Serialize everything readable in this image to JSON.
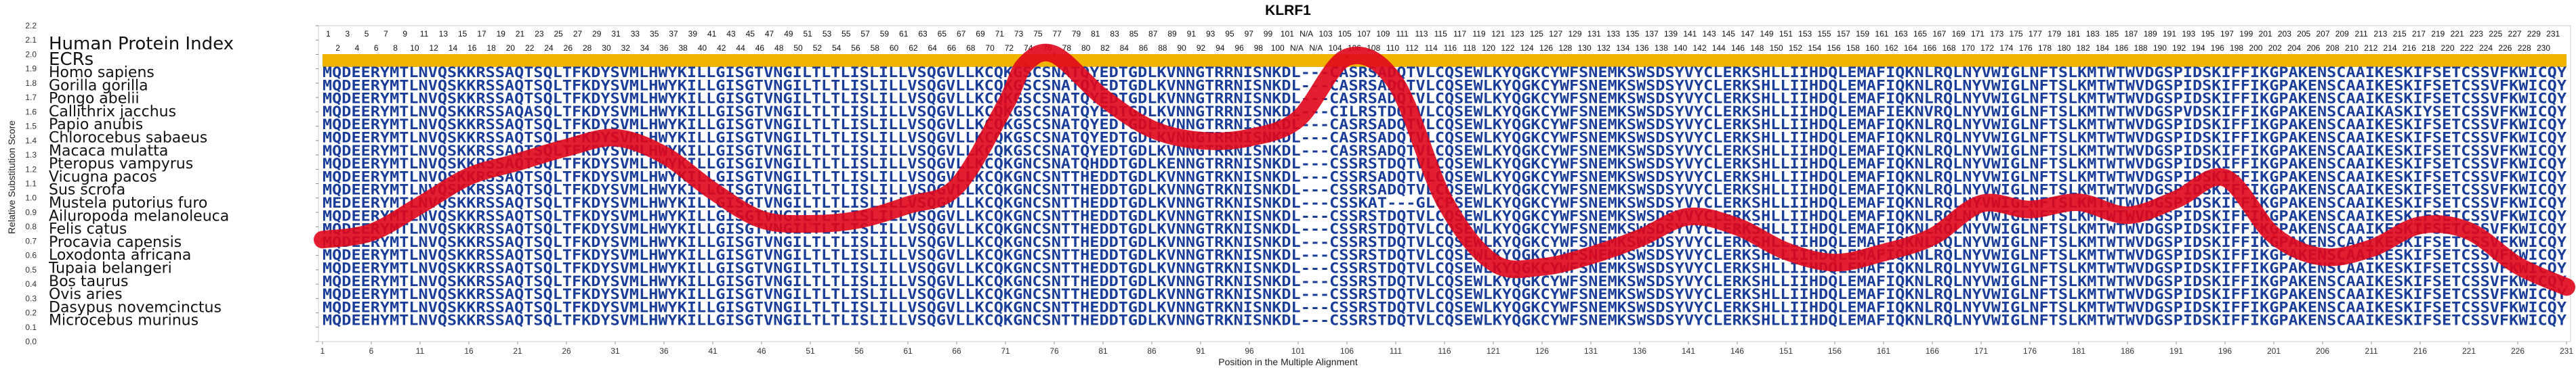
{
  "chart_data": {
    "type": "line",
    "title": "KLRF1",
    "xlabel": "Position in the Multiple Alignment",
    "ylabel": "Relative Substitution Score",
    "ylim": [
      0.0,
      2.2
    ],
    "y_ticks": [
      "0.0",
      "0.1",
      "0.2",
      "0.3",
      "0.4",
      "0.5",
      "0.6",
      "0.7",
      "0.8",
      "0.9",
      "1.0",
      "1.1",
      "1.2",
      "1.3",
      "1.4",
      "1.5",
      "1.6",
      "1.7",
      "1.8",
      "1.9",
      "2.0",
      "2.1",
      "2.2"
    ],
    "x_ticks": [
      "1",
      "6",
      "11",
      "16",
      "21",
      "26",
      "31",
      "36",
      "41",
      "46",
      "51",
      "56",
      "61",
      "66",
      "71",
      "76",
      "81",
      "86",
      "91",
      "96",
      "101",
      "106",
      "111",
      "116",
      "121",
      "126",
      "131",
      "136",
      "141",
      "146",
      "151",
      "156",
      "161",
      "166",
      "171",
      "176",
      "181",
      "186",
      "191",
      "196",
      "201",
      "206",
      "211",
      "216",
      "221",
      "226",
      "231"
    ],
    "series": [
      {
        "color": "#e0061a",
        "x": [
          1,
          6,
          11,
          16,
          21,
          26,
          31,
          36,
          41,
          46,
          51,
          56,
          61,
          66,
          71,
          73,
          76,
          81,
          86,
          91,
          96,
          101,
          106,
          111,
          116,
          121,
          126,
          131,
          136,
          141,
          146,
          151,
          156,
          161,
          166,
          171,
          176,
          181,
          186,
          191,
          196,
          201,
          206,
          211,
          216,
          221,
          226,
          231
        ],
        "y": [
          0.71,
          0.76,
          0.95,
          1.15,
          1.25,
          1.35,
          1.42,
          1.3,
          1.05,
          0.85,
          0.82,
          0.85,
          0.95,
          1.08,
          1.65,
          1.93,
          2.0,
          1.7,
          1.48,
          1.4,
          1.42,
          1.55,
          1.98,
          1.8,
          0.98,
          0.55,
          0.52,
          0.6,
          0.72,
          0.87,
          0.8,
          0.63,
          0.55,
          0.62,
          0.73,
          0.96,
          0.92,
          0.97,
          0.88,
          0.99,
          1.14,
          0.74,
          0.59,
          0.65,
          0.81,
          0.77,
          0.53,
          0.38
        ]
      }
    ]
  },
  "alignment": {
    "panel_title": "Human Protein Index",
    "ecr_label": "ECRs",
    "ecr_color": "#f0b400",
    "seq_color": "#1a3d99",
    "index_row_1": [
      "1",
      "3",
      "5",
      "7",
      "9",
      "11",
      "13",
      "15",
      "17",
      "19",
      "21",
      "23",
      "25",
      "27",
      "29",
      "31",
      "33",
      "35",
      "37",
      "39",
      "41",
      "43",
      "45",
      "47",
      "49",
      "51",
      "53",
      "55",
      "57",
      "59",
      "61",
      "63",
      "65",
      "67",
      "69",
      "71",
      "73",
      "75",
      "77",
      "79",
      "81",
      "83",
      "85",
      "87",
      "89",
      "91",
      "93",
      "95",
      "97",
      "99",
      "101",
      "N/A",
      "103",
      "105",
      "107",
      "109",
      "111",
      "113",
      "115",
      "117",
      "119",
      "121",
      "123",
      "125",
      "127",
      "129",
      "131",
      "133",
      "135",
      "137",
      "139",
      "141",
      "143",
      "145",
      "147",
      "149",
      "151",
      "153",
      "155",
      "157",
      "159",
      "161",
      "163",
      "165",
      "167",
      "169",
      "171",
      "173",
      "175",
      "177",
      "179",
      "181",
      "183",
      "185",
      "187",
      "189",
      "191",
      "193",
      "195",
      "197",
      "199",
      "201",
      "203",
      "205",
      "207",
      "209",
      "211",
      "213",
      "215",
      "217",
      "219",
      "221",
      "223",
      "225",
      "227",
      "229",
      "231"
    ],
    "index_row_2": [
      "2",
      "4",
      "6",
      "8",
      "10",
      "12",
      "14",
      "16",
      "18",
      "20",
      "22",
      "24",
      "26",
      "28",
      "30",
      "32",
      "34",
      "36",
      "38",
      "40",
      "42",
      "44",
      "46",
      "48",
      "50",
      "52",
      "54",
      "56",
      "58",
      "60",
      "62",
      "64",
      "66",
      "68",
      "70",
      "72",
      "74",
      "76",
      "78",
      "80",
      "82",
      "84",
      "86",
      "88",
      "90",
      "92",
      "94",
      "96",
      "98",
      "100",
      "N/A",
      "N/A",
      "104",
      "106",
      "108",
      "110",
      "112",
      "114",
      "116",
      "118",
      "120",
      "122",
      "124",
      "126",
      "128",
      "130",
      "132",
      "134",
      "136",
      "138",
      "140",
      "142",
      "144",
      "146",
      "148",
      "150",
      "152",
      "154",
      "156",
      "158",
      "160",
      "162",
      "164",
      "166",
      "168",
      "170",
      "172",
      "174",
      "176",
      "178",
      "180",
      "182",
      "184",
      "186",
      "188",
      "190",
      "192",
      "194",
      "196",
      "198",
      "200",
      "202",
      "204",
      "206",
      "208",
      "210",
      "212",
      "214",
      "216",
      "218",
      "220",
      "222",
      "224",
      "226",
      "228",
      "230"
    ],
    "rows": [
      {
        "species": "Homo sapiens",
        "seq": "MQDEERYMTLNVQSKKRSSAQTSQLTFKDYSVMLHWYKILLGISGTVNGILTLTLISLILLVSQGVLLKCQKGSCSNATQYEDTGDLKVNNGTRRNISNKDL---CASRSADQTVLCQSEWLKYQGKCYWFSNEMKSWSDSYVYCLERKSHLLIIHDQLEMAFIQKNLRQLNYVWIGLNFTSLKMTWTWVDGSPIDSKIFFIKGPAKENSCAAIKESKIFSETCSSVFKWICQY"
      },
      {
        "species": "Gorilla gorilla",
        "seq": "MQDEERYMTLNVQSKKRSSAQTSQLTFKDYSVMLHWYKILLGISGTVNGILTLTLISLILLVSQGVLLKCQKGSCSNATQYEDTGDLKVNNGTRRNISNKDL---CASRSADQTVLCQSEWLKYQGKCYWFSNEMKSWSDSYVYCLERKSHLLIIHDQLEMAFIQKNLRQLNYVWIGLNFTSLKMTWTWVDGSPIDSKIFFIKGPAKENSCAAIKESKIFSETCSSVFKWICQY"
      },
      {
        "species": "Pongo abelii",
        "seq": "MQDEERYMTLNVQSKKRSSAQTSQLTFKDYSVMLHWYKILLGISGTVNGILTLTLISLILLVSQGVLLKCQKGSCSNATQYEDTGDLKVNNGTRRNISNKDL---CASRSADQTVLCQSEWLKYQGKCYWFSNEMKSWSDSYVYCLERKSHLLIIHDQLEMAFIQKNLRQLNYVWIGLNFTSLKMTWTWVDGSPIDSKIFFIKGPAKENSCAAIKESKIFSETCSSVFKWICQY"
      },
      {
        "species": "Callithrix jacchus",
        "seq": "MQDEERYMTLNVQSKKRSSAQASQLTFKDYSVMLHWYKILLGISGTVNGILTLTLISLILLVSQGVLLKCQKGSCSNATQYEDTGDLKVNNGTRRNISNKDL---CILRSTDQTVLCQSEWLKYQGKCYWFSNEMKSWSDSYVYCLERKSHLLIIHDQLEMAFIEKNVRQLNYVWIGLNFTSLKMTWTWVDGSPVDSKIFFIKGPAKENSCAAIKASKIYSETCSSVFKWICQY"
      },
      {
        "species": "Papio anubis",
        "seq": "MQDEERYMTLNVQSKKRSSAQTSQLTFKDYSVMLHWYKILLGISGTVNGILTLTLISLILLVSQGVLLKCQKGSCSNATQYEDTGDLKVNNGTRRNISNKDL---CASRSADQTVLCQSEWLKYQGKCYWFSNEMKSWSDSYVYCLERKSHLLIIHDQLEMAFIQKNLRQLNYVWIGLNFTSLKMTWTWVDGSPIDSKIFFIKGPAKENSCAAIKESKIFSETCSSVFKWICQY"
      },
      {
        "species": "Chlorocebus sabaeus",
        "seq": "MQDEERYMTLNVQSKKRSSAQTSQLTFKDYSVMLHWYKILLGISGTVNGILTLTLISLILLVSQGVLLKCQKGSCSNATQYEDTGDLKVNNGTRRNISNKDL---CASRSADQTVLCQSEWLKYQGKCYWFSNEMKSWSDSYVYCLERKSHLLIIHDQLEMAFIQKNLRQLNYVWIGLNFTSLKMTWTWVDGSPIDSKIFFIKGPAKENSCAAIKESKIFSETCSSVFKWICQY"
      },
      {
        "species": "Macaca mulatta",
        "seq": "MQDEERYMTLNVQSKKRSSAQTSQLTFKDYSVMLHWYKILLGISGTVNGILTLTLISLILLVSQGVLLKCQKGSCSNATQYEDTGDLKVNNGTRRNISNKDL---CASRSADQTVLCQSEWLKYQGKCYWFSNEMKSWSDSYVYCLERKSHLLIIHDQLEMAFIQKNLRQLNYVWIGLNFTSLKMTWTWVDGSPIDSKIFFIKGPAKENSCAAIKESKIFSETCSSVFKWICQY"
      },
      {
        "species": "Pteropus vampyrus",
        "seq": "MQDEERYMTLNVQSKKRSSAQTSQLTFKDYSVMLHWYKILLGISGIVNGILTLTLISLILLVSQGVLLKCQKGNCSNATQHDDTGDLKENNGTRRNISNKDL---CSSRSTDQTVLCQSEWLKYQGKCYWFSNEMKSWSDSYVYCLERKSHLLIIHDQLEMAFIQKNLRQLNYVWIGLNFTSLKMTWTWVDGSPIDSKIFFIKGPAKENSCAAIKESKIFSETCSSVFKWICQY"
      },
      {
        "species": "Vicugna pacos",
        "seq": "MQDEERYMTLNVQSKKRSSAQTSQLTFKDYSVMLHWYKILLGISGTVNGILTLTLISLILLVSQGVLLKCQKGNCSNTTHEDDTGDLKVNNGTRKNISNKDL---CSSRSADQTVLCQSEWLKYQGKCYWFSNEMKSWSDSYVYCLERKSHLLIIHDQLEMAFIQKNLRQLNYVWIGLNFTSLKMTWTWVDGSPIDSKIFFIKGPAKENSCAAIKESKIFSETCSSVFKWICQY"
      },
      {
        "species": "Sus scrofa",
        "seq": "MQDEERYMTLNVQSKKRSSAQTSQLTFKDYSVMLHWYKILLGISGTVNGILTLTLISLILLVSQGVLLKCQKGNCSNTTHEDDTGDLKVNNGTRKNISNKDL---CSSRSADQTVLCQSEWLKYQGKCYWFSNEMKSWSDSYVYCLERKSHLLIIHDQLEMAFIQKNLRQLNYVWIGLNFTSLKMTWTWVDGSPIDSKIFFIKGPAKENSCAAIKESKIFSETCSSVFKWICQY"
      },
      {
        "species": "Mustela putorius furo",
        "seq": "MEDEERYMTLNVQSKKRSSAQTSQLTFKDYSVMLHWYKILLGISGTVNGILTLTLISLILLVSQGVLLKCQKGNCSNTTHEDDTGDLKVNNGTRKNISNKDL---CSSKAT---GLCPSEWLKYQGKCYWFSNEMKSWSDSYVYCLERKSHLLIIHDQLEMAFIQKNLRQLNYVWIGLNFTSLKMTWTWVDGSPIDSKIFFIKGPAKENSCAAIKESKIFSETCSSVFKWICQY"
      },
      {
        "species": "Ailuropoda melanoleuca",
        "seq": "MQDEERYMTLNVQSKKRSSAQTSQLTFKDYSVMLHWYKILLGISGTVNGILTLTLISLILLVSQGVLLKCQKGNCSNTTHEDDTGDLKVNNGTRKNISNKDL---CSSRSTDQTVLCQSEWLKYQGKCYWFSNEMKSWSDSYVYCLERKSHLLIIHDQLEMAFIQKNLRQLNYVWIGLNFTSLKMTWTWVDGSPIDSKIFFIKGPAKENSCAAIKESKIFSETCSSVFKWICQY"
      },
      {
        "species": "Felis catus",
        "seq": "MQDEERYMTLNVQSKKRSSAQTSQLTFKDYSVMLHWYKILLGISGTVNGILTLTLISLILLVSQGVLLKCQKGNCSNTTHEDDTGDLKVNNGTRKNISNKDL---CSSRSTDQTVLCQSEWLKYQGKCYWFSNEMKSWSDSYVYCLERKSHLLIIHDQLEMAFIQKNLRQLNYVWIGLNFTSLKMTWTWVDGSPIDSKIFFIKGPAKENSCAAIKESKIFSETCSSVFKWICQY"
      },
      {
        "species": "Procavia capensis",
        "seq": "MQDEERYMTLNVQSKKRSSAQTSQLTFKDYSVMLHWYKILLGISGTVNGILTLTLISLILLVSQGVLLKCQKGNCSNTTHEDDTGDLKVNNGTRKNISNKDL---CSSRSTDQTVLCQSEWLKYQGKCYWFSNEMKSWSDSYVYCLERKSHLLIIHDQLEMAFIQKNLRQLNYVWIGLNFTSLKMTWTWVDGSPIDSKIFFIKGPAKENSCAAIKESKIFSETCSSVFKWICQY"
      },
      {
        "species": "Loxodonta africana",
        "seq": "MQDEERYMTLNVQSKKRSSAQTSQLTFKDYSVMLHWYKILLGISGTVNGILTLTLISLILLVSQGVLLKCQKGNCSNTTHEDDTGDLKVNNGTRKNISNKDL---CSSRSTDQTVLCQSEWLKYQGKCYWFSNEMKSWSDSYVYCLERKSHLLIIHDQLEMAFIQKNLRQLNYVWIGLNFTSLKMTWTWVDGSPIDSKIFFIKGPAKENSCAAIKESKIFSETCSSVFKWICQY"
      },
      {
        "species": "Tupaia belangeri",
        "seq": "MQDEERYMTLNVQSKKRSSAQTSQLTFKDYSVMLHWYKILLGISGTVNGILTLTLISLILLVSQGVLLKCQKGNCSNTTHEDDTGDLKVNNGTRKNISNKDL---CSSRSTDQTVLCQSEWLKYQGKCYWFSNEMKSWSDSYVYCLERKSHLLIIHDQLEMAFIQKNLRQLNYVWIGLNFTSLKMTWTWVDGSPIDSKIFFIKGPAKENSCAAIKESKIFSETCSSVFKWICQY"
      },
      {
        "species": "Bos taurus",
        "seq": "MQDEERYMTLNVQSKKRSSAQTSQLTFKDYSVMLHWYKILLGISGTVNGILTLTLISLILLVSQGVLLKCQKGNCSNTTHEDDTGDLKVNNGTRKNISNKDL---CSSRSTDQTVLCQSEWLKYQGKCYWFSNEMKSWSDSYVYCLERKSHLLIIHDQLEMAFIQKNLRQLNYVWIGLNFTSLKMTWTWVDGSPIDSKIFFIKGPAKENSCAAIKESKIFSETCSSVFKWICQY"
      },
      {
        "species": "Ovis aries",
        "seq": "MQDEERYMTLNVQSKKRSSAQTSQLTFKDYSVMLHWYKILLGISGTVNGILTLTLISLILLVSQGVLLKCQKGNCSNTTHEDDTGDLKVNNGTRKNISNKDL---CSSRSTDQTVLCQSEWLKYQGKCYWFSNEMKSWSDSYVYCLERKSHLLIIHDQLEMAFIQKNLRQLNYVWIGLNFTSLKMTWTWVDGSPIDSKIFFIKGPAKENSCAAIKESKIFSETCSSVFKWICQY"
      },
      {
        "species": "Dasypus novemcinctus",
        "seq": "MQDEERYMTLNVQSKKRSSAQTSQLTFKDYSVMLHWYKILLGISGTVNGILTLTLISLILLVSQGVLLKCQKGNCSNTTHEDDTGDLKVNNGTRKNISNKDL---CSSRSTDQTVLCQSEWLKYQGKCYWFSNEMKSWSDSYVYCLERKSHLLIIHDQLEMAFIQKNLRQLNYVWIGLNFTSLKMTWTWVDGSPIDSKIFFIKGPAKENSCAAIKESKIFSETCSSVFKWICQY"
      },
      {
        "species": "Microcebus murinus",
        "seq": "MQDEEHYMTLNVQSKKRSSAQTSQLTFKDYSVMLHWYKILLGISGTVNGILTLTLISLILLVSQGVLLKCQKGNCSNTTHEDDTGDLKVNNGTRKNISNKDL---CSSRSTDQTVLCQSEWLKYQGKCYWFSNEMKSWSDSYVYCLERKSHLLIIHDQLEMAFIQKNLRQLNYVWIGLNFTSLKMTWTWVDGSPIDSKIFFIKGPAKENSCAAIKESKIFSETCSSVFKWICQY"
      }
    ]
  }
}
